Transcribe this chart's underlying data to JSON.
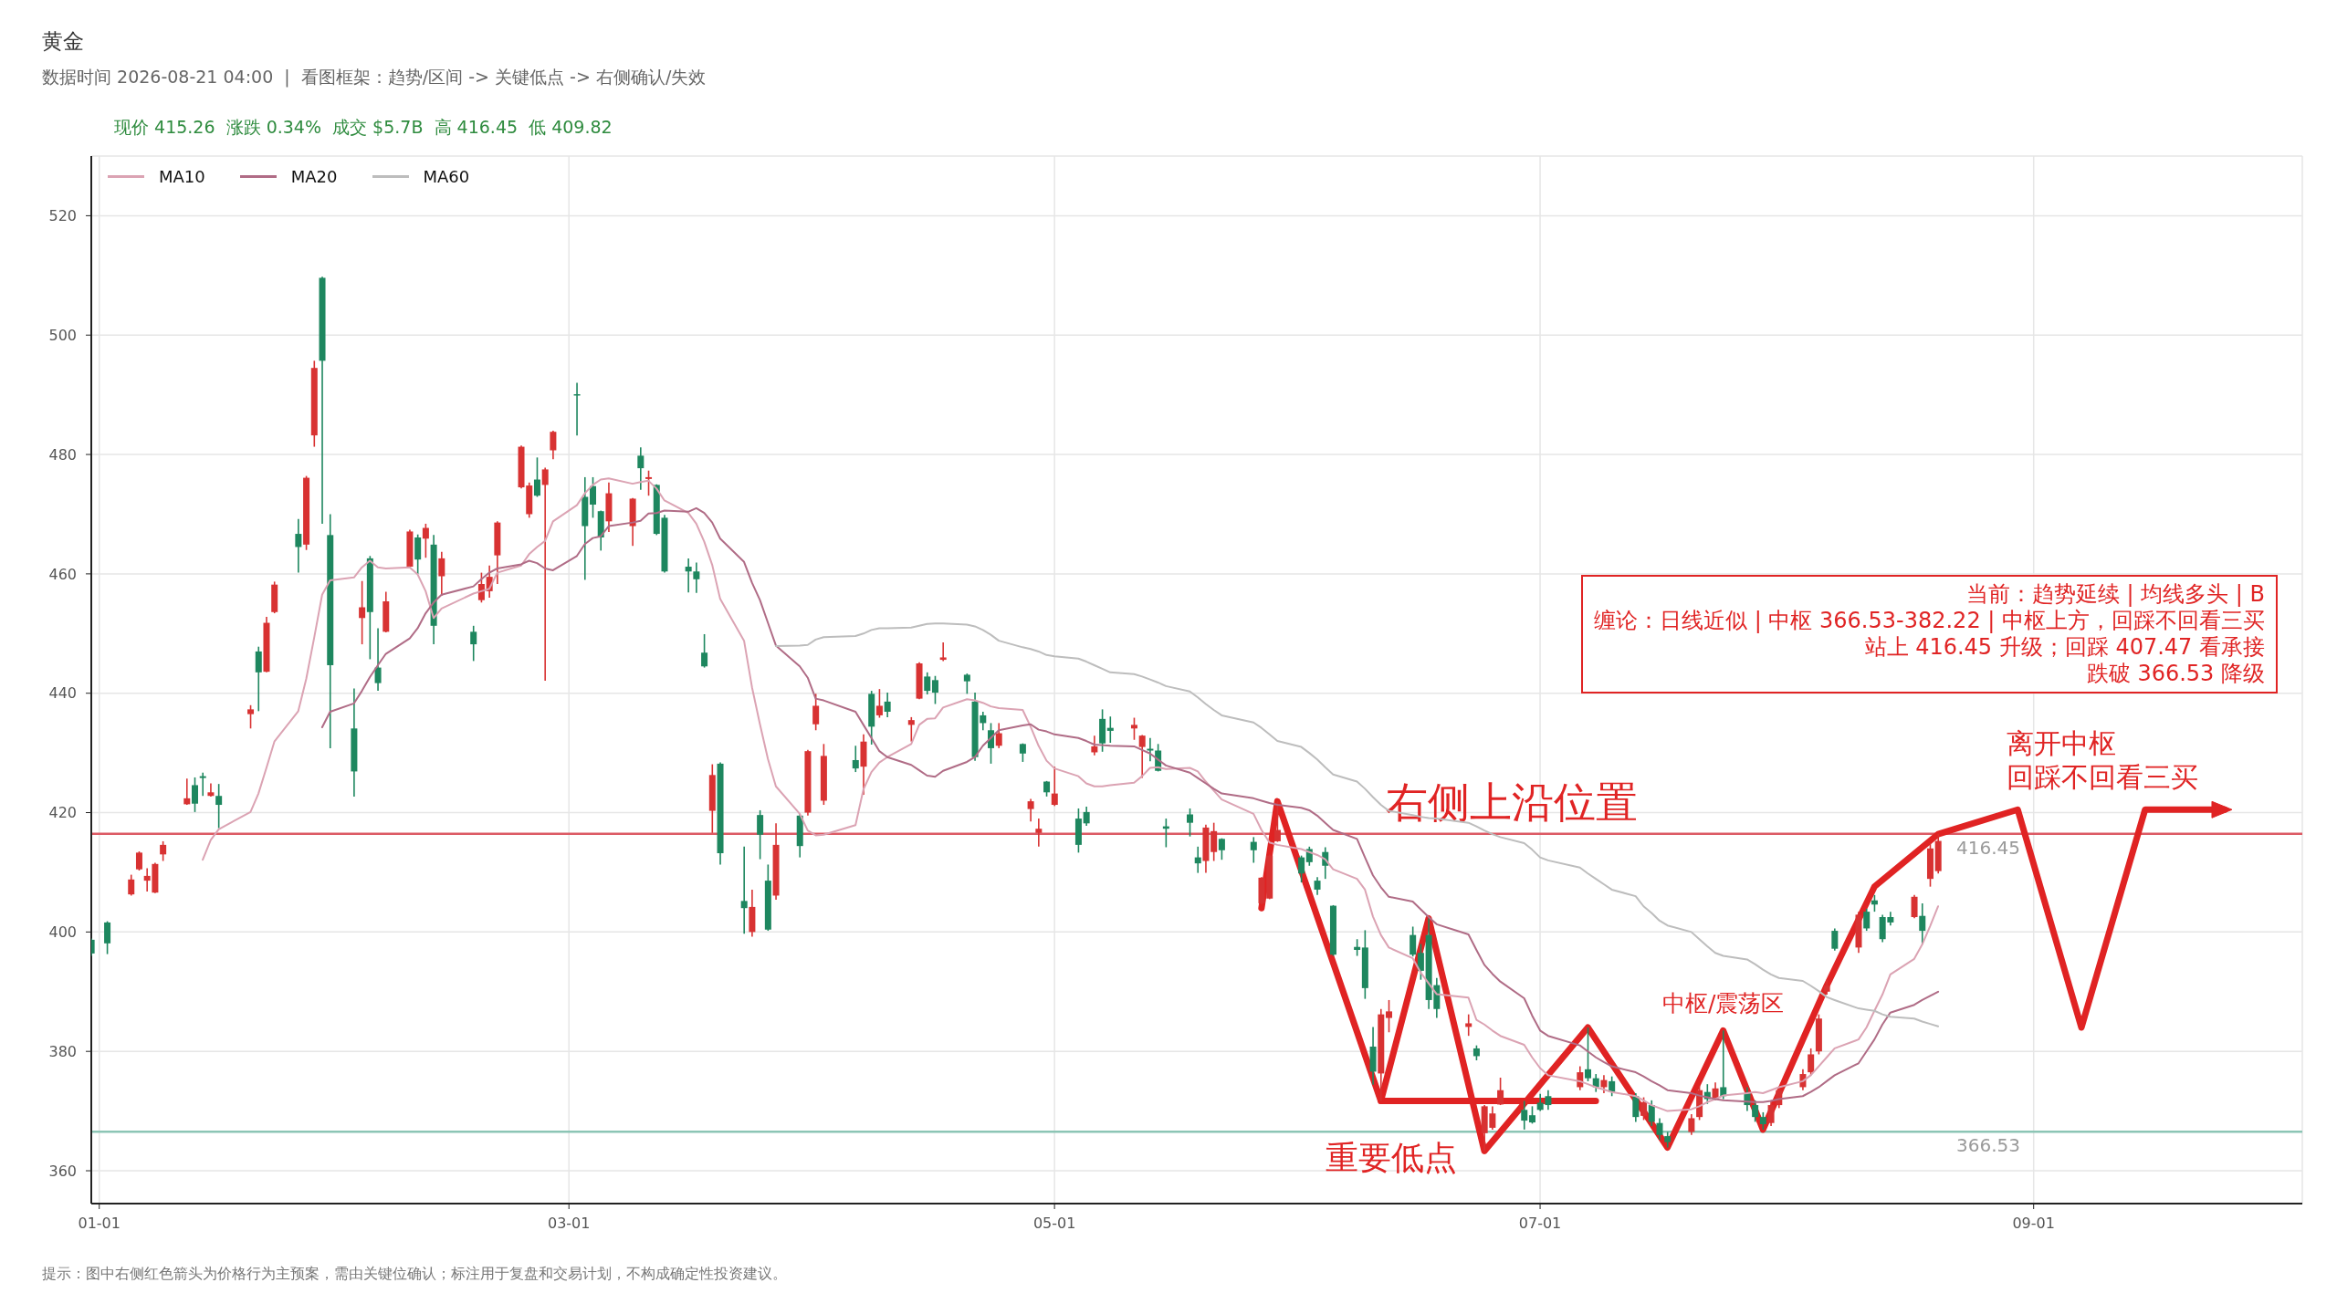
{
  "chart_data": {
    "type": "candlestick",
    "title": "黄金",
    "subtitle": "数据时间 2026-08-21 04:00  |  看图框架：趋势/区间 -> 关键低点 -> 右侧确认/失效",
    "x": [
      "2025-12-31",
      "2026-01-02",
      "2026-01-05",
      "2026-01-06",
      "2026-01-07",
      "2026-01-08",
      "2026-01-09",
      "2026-01-12",
      "2026-01-13",
      "2026-01-14",
      "2026-01-15",
      "2026-01-16",
      "2026-01-20",
      "2026-01-21",
      "2026-01-22",
      "2026-01-23",
      "2026-01-26",
      "2026-01-27",
      "2026-01-28",
      "2026-01-29",
      "2026-01-30",
      "2026-02-02",
      "2026-02-03",
      "2026-02-04",
      "2026-02-05",
      "2026-02-06",
      "2026-02-09",
      "2026-02-10",
      "2026-02-11",
      "2026-02-12",
      "2026-02-13",
      "2026-02-17",
      "2026-02-18",
      "2026-02-19",
      "2026-02-20",
      "2026-02-23",
      "2026-02-24",
      "2026-02-25",
      "2026-02-26",
      "2026-02-27",
      "2026-03-02",
      "2026-03-03",
      "2026-03-04",
      "2026-03-05",
      "2026-03-06",
      "2026-03-09",
      "2026-03-10",
      "2026-03-11",
      "2026-03-12",
      "2026-03-13",
      "2026-03-16",
      "2026-03-17",
      "2026-03-18",
      "2026-03-19",
      "2026-03-20",
      "2026-03-23",
      "2026-03-24",
      "2026-03-25",
      "2026-03-26",
      "2026-03-27",
      "2026-03-30",
      "2026-03-31",
      "2026-04-01",
      "2026-04-02",
      "2026-04-06",
      "2026-04-07",
      "2026-04-08",
      "2026-04-09",
      "2026-04-10",
      "2026-04-13",
      "2026-04-14",
      "2026-04-15",
      "2026-04-16",
      "2026-04-17",
      "2026-04-20",
      "2026-04-21",
      "2026-04-22",
      "2026-04-23",
      "2026-04-24",
      "2026-04-27",
      "2026-04-28",
      "2026-04-29",
      "2026-04-30",
      "2026-05-01",
      "2026-05-04",
      "2026-05-05",
      "2026-05-06",
      "2026-05-07",
      "2026-05-08",
      "2026-05-11",
      "2026-05-12",
      "2026-05-13",
      "2026-05-14",
      "2026-05-15",
      "2026-05-18",
      "2026-05-19",
      "2026-05-20",
      "2026-05-21",
      "2026-05-22",
      "2026-05-26",
      "2026-05-27",
      "2026-05-28",
      "2026-05-29",
      "2026-06-01",
      "2026-06-02",
      "2026-06-03",
      "2026-06-04",
      "2026-06-05",
      "2026-06-08",
      "2026-06-09",
      "2026-06-10",
      "2026-06-11",
      "2026-06-12",
      "2026-06-15",
      "2026-06-16",
      "2026-06-17",
      "2026-06-18",
      "2026-06-22",
      "2026-06-23",
      "2026-06-24",
      "2026-06-25",
      "2026-06-26",
      "2026-06-29",
      "2026-06-30",
      "2026-07-01",
      "2026-07-02",
      "2026-07-06",
      "2026-07-07",
      "2026-07-08",
      "2026-07-09",
      "2026-07-10",
      "2026-07-13",
      "2026-07-14",
      "2026-07-15",
      "2026-07-16",
      "2026-07-17",
      "2026-07-20",
      "2026-07-21",
      "2026-07-22",
      "2026-07-23",
      "2026-07-24",
      "2026-07-27",
      "2026-07-28",
      "2026-07-29",
      "2026-07-30",
      "2026-07-31",
      "2026-08-03",
      "2026-08-04",
      "2026-08-05",
      "2026-08-06",
      "2026-08-07",
      "2026-08-10",
      "2026-08-11",
      "2026-08-12",
      "2026-08-13",
      "2026-08-14",
      "2026-08-17",
      "2026-08-18",
      "2026-08-19",
      "2026-08-20"
    ],
    "ohlc": [
      [
        398.7,
        398.9,
        396.0,
        396.4
      ],
      [
        401.6,
        401.8,
        396.3,
        398.1
      ],
      [
        406.3,
        409.6,
        406.1,
        408.8
      ],
      [
        410.5,
        413.5,
        410.3,
        413.3
      ],
      [
        408.6,
        410.7,
        406.8,
        409.4
      ],
      [
        406.6,
        411.6,
        406.5,
        411.4
      ],
      [
        413.0,
        415.2,
        411.9,
        414.6
      ],
      [
        421.4,
        425.7,
        421.3,
        422.4
      ],
      [
        424.6,
        425.9,
        420.1,
        421.5
      ],
      [
        426.1,
        426.7,
        422.8,
        425.8
      ],
      [
        422.8,
        424.9,
        422.7,
        423.4
      ],
      [
        422.8,
        424.8,
        417.4,
        421.3
      ],
      [
        436.5,
        438.0,
        434.1,
        437.3
      ],
      [
        447.0,
        447.8,
        437.0,
        443.5
      ],
      [
        443.6,
        452.8,
        443.5,
        451.8
      ],
      [
        453.6,
        458.7,
        453.4,
        458.2
      ],
      [
        466.7,
        469.2,
        460.2,
        464.5
      ],
      [
        464.9,
        476.4,
        464.0,
        476.1
      ],
      [
        483.2,
        495.7,
        481.3,
        494.5
      ],
      [
        509.6,
        509.8,
        468.4,
        495.7
      ],
      [
        466.5,
        470.0,
        430.8,
        444.7
      ],
      [
        434.1,
        440.8,
        422.7,
        426.9
      ],
      [
        452.6,
        458.8,
        448.2,
        454.4
      ],
      [
        462.6,
        463.0,
        445.7,
        453.6
      ],
      [
        444.3,
        450.9,
        440.4,
        441.7
      ],
      [
        450.3,
        457.0,
        450.2,
        455.4
      ],
      [
        461.2,
        467.4,
        461.1,
        467.1
      ],
      [
        466.1,
        466.6,
        460.0,
        462.4
      ],
      [
        465.9,
        468.4,
        462.7,
        467.7
      ],
      [
        464.9,
        466.5,
        448.2,
        451.3
      ],
      [
        459.6,
        463.7,
        456.3,
        462.6
      ],
      [
        450.3,
        451.3,
        445.4,
        448.2
      ],
      [
        455.6,
        460.2,
        455.2,
        458.3
      ],
      [
        457.1,
        461.4,
        456.0,
        459.5
      ],
      [
        463.1,
        468.8,
        458.3,
        468.6
      ],
      [
        474.5,
        481.5,
        474.3,
        481.3
      ],
      [
        470.0,
        475.3,
        469.4,
        474.8
      ],
      [
        475.8,
        479.5,
        472.9,
        473.1
      ],
      [
        474.9,
        477.8,
        442.1,
        477.5
      ],
      [
        480.7,
        484.0,
        479.2,
        483.8
      ],
      [
        490.1,
        492.0,
        483.2,
        489.9
      ],
      [
        472.9,
        476.2,
        459.0,
        468.0
      ],
      [
        474.7,
        476.2,
        469.4,
        471.6
      ],
      [
        470.5,
        470.6,
        463.9,
        466.1
      ],
      [
        468.8,
        475.3,
        467.0,
        473.5
      ],
      [
        468.0,
        472.7,
        464.7,
        472.6
      ],
      [
        479.8,
        481.2,
        474.1,
        477.7
      ],
      [
        475.9,
        477.3,
        473.1,
        476.2
      ],
      [
        474.9,
        475.0,
        466.5,
        466.7
      ],
      [
        469.4,
        469.9,
        460.2,
        460.4
      ],
      [
        461.2,
        462.6,
        456.9,
        460.4
      ],
      [
        460.4,
        461.9,
        456.8,
        459.1
      ],
      [
        446.8,
        449.9,
        444.3,
        444.5
      ],
      [
        420.3,
        428.1,
        416.6,
        426.3
      ],
      [
        428.2,
        428.4,
        411.3,
        413.2
      ],
      [
        405.2,
        414.3,
        399.7,
        404.0
      ],
      [
        400.0,
        407.1,
        399.2,
        404.2
      ],
      [
        419.6,
        420.4,
        412.2,
        416.3
      ],
      [
        408.6,
        411.3,
        400.2,
        400.4
      ],
      [
        406.1,
        418.2,
        405.4,
        414.6
      ],
      [
        419.5,
        419.8,
        412.5,
        414.4
      ],
      [
        420.0,
        430.5,
        419.5,
        430.3
      ],
      [
        434.8,
        439.9,
        433.8,
        437.9
      ],
      [
        422.0,
        431.5,
        421.3,
        429.5
      ],
      [
        428.8,
        431.2,
        426.8,
        427.4
      ],
      [
        427.7,
        433.1,
        423.0,
        431.9
      ],
      [
        439.9,
        440.4,
        431.4,
        434.4
      ],
      [
        436.3,
        440.7,
        435.9,
        437.9
      ],
      [
        438.6,
        440.1,
        436.0,
        436.9
      ],
      [
        434.7,
        436.0,
        431.9,
        435.5
      ],
      [
        439.1,
        445.2,
        439.0,
        445.0
      ],
      [
        442.8,
        443.5,
        439.8,
        440.4
      ],
      [
        442.2,
        442.9,
        438.2,
        440.1
      ],
      [
        445.6,
        448.5,
        445.4,
        446.0
      ],
      [
        443.1,
        443.3,
        439.9,
        442.0
      ],
      [
        438.6,
        440.1,
        428.7,
        429.3
      ],
      [
        436.3,
        436.9,
        433.8,
        435.0
      ],
      [
        433.8,
        435.0,
        428.2,
        430.8
      ],
      [
        431.2,
        435.0,
        430.8,
        433.3
      ],
      [
        431.5,
        431.6,
        428.5,
        429.9
      ],
      [
        420.6,
        422.3,
        418.5,
        421.9
      ],
      [
        416.6,
        419.0,
        414.3,
        417.3
      ],
      [
        425.2,
        425.3,
        422.7,
        423.4
      ],
      [
        421.3,
        427.7,
        421.1,
        423.2
      ],
      [
        419.0,
        420.7,
        413.3,
        414.6
      ],
      [
        420.1,
        421.0,
        417.8,
        418.2
      ],
      [
        430.1,
        432.9,
        429.6,
        431.1
      ],
      [
        435.7,
        437.3,
        430.2,
        431.6
      ],
      [
        434.2,
        436.1,
        431.7,
        433.7
      ],
      [
        434.1,
        435.9,
        432.2,
        434.7
      ],
      [
        431.0,
        433.0,
        425.8,
        432.9
      ],
      [
        430.7,
        432.5,
        428.6,
        430.4
      ],
      [
        430.4,
        431.5,
        426.9,
        427.0
      ],
      [
        417.7,
        419.0,
        414.2,
        417.3
      ],
      [
        419.7,
        420.7,
        416.0,
        418.3
      ],
      [
        412.5,
        414.3,
        409.9,
        411.5
      ],
      [
        411.9,
        418.0,
        409.9,
        417.5
      ],
      [
        413.4,
        418.3,
        411.9,
        416.9
      ],
      [
        415.6,
        415.7,
        412.1,
        413.7
      ],
      [
        415.1,
        415.9,
        411.6,
        413.7
      ],
      [
        404.8,
        409.2,
        404.6,
        409.1
      ],
      [
        405.6,
        413.0,
        405.5,
        412.8
      ],
      [
        415.2,
        421.9,
        415.1,
        417.1
      ],
      [
        412.5,
        412.8,
        408.3,
        409.8
      ],
      [
        413.9,
        414.3,
        411.1,
        411.7
      ],
      [
        408.6,
        409.2,
        406.2,
        407.1
      ],
      [
        413.4,
        414.2,
        408.9,
        411.1
      ],
      [
        404.4,
        404.5,
        396.0,
        396.2
      ],
      [
        397.5,
        398.8,
        396.0,
        397.0
      ],
      [
        397.4,
        400.3,
        388.8,
        390.6
      ],
      [
        380.8,
        384.1,
        374.4,
        376.6
      ],
      [
        376.3,
        387.1,
        371.7,
        386.2
      ],
      [
        385.6,
        388.6,
        383.2,
        386.7
      ],
      [
        399.5,
        400.9,
        395.9,
        396.2
      ],
      [
        396.5,
        398.0,
        392.0,
        393.5
      ],
      [
        399.5,
        402.3,
        387.1,
        388.6
      ],
      [
        391.1,
        392.3,
        385.6,
        387.1
      ],
      [
        384.1,
        386.2,
        382.6,
        384.7
      ],
      [
        380.5,
        381.0,
        378.5,
        379.2
      ],
      [
        366.3,
        371.0,
        363.3,
        370.8
      ],
      [
        367.2,
        370.8,
        366.9,
        369.6
      ],
      [
        371.1,
        375.6,
        371.0,
        373.5
      ],
      [
        370.2,
        371.7,
        366.9,
        368.4
      ],
      [
        369.3,
        370.8,
        367.9,
        368.1
      ],
      [
        371.4,
        372.9,
        370.0,
        370.2
      ],
      [
        372.5,
        373.5,
        370.2,
        371.0
      ],
      [
        374.0,
        377.5,
        373.5,
        376.5
      ],
      [
        377.0,
        384.0,
        375.0,
        375.5
      ],
      [
        375.5,
        376.2,
        373.2,
        374.0
      ],
      [
        374.0,
        376.0,
        373.0,
        375.2
      ],
      [
        375.0,
        375.8,
        372.5,
        373.2
      ],
      [
        372.5,
        373.0,
        368.2,
        369.0
      ],
      [
        369.2,
        372.3,
        368.5,
        371.5
      ],
      [
        371.0,
        371.8,
        367.5,
        368.2
      ],
      [
        368.0,
        368.8,
        365.2,
        366.0
      ],
      [
        365.8,
        366.5,
        363.9,
        364.8
      ],
      [
        366.5,
        369.5,
        366.0,
        368.8
      ],
      [
        369.0,
        374.2,
        368.5,
        373.5
      ],
      [
        373.2,
        374.5,
        371.2,
        372.0
      ],
      [
        372.2,
        374.8,
        371.8,
        373.8
      ],
      [
        374.0,
        383.5,
        372.0,
        372.5
      ],
      [
        373.0,
        374.0,
        370.0,
        371.0
      ],
      [
        371.0,
        371.8,
        368.2,
        369.0
      ],
      [
        369.0,
        369.8,
        366.9,
        367.8
      ],
      [
        368.0,
        371.8,
        367.5,
        371.0
      ],
      [
        371.0,
        374.2,
        370.5,
        373.5
      ],
      [
        374.0,
        377.0,
        373.5,
        376.2
      ],
      [
        376.5,
        380.5,
        376.0,
        379.5
      ],
      [
        380.0,
        386.2,
        379.5,
        385.5
      ],
      [
        390.0,
        392.0,
        389.5,
        391.0
      ],
      [
        400.2,
        400.6,
        396.9,
        397.2
      ],
      [
        397.4,
        403.4,
        396.5,
        402.9
      ],
      [
        403.4,
        403.9,
        400.2,
        400.6
      ],
      [
        405.3,
        406.2,
        403.4,
        404.6
      ],
      [
        402.5,
        402.9,
        398.3,
        398.8
      ],
      [
        402.5,
        403.4,
        401.1,
        401.6
      ],
      [
        402.5,
        406.2,
        402.3,
        405.9
      ],
      [
        402.7,
        404.8,
        397.9,
        400.2
      ],
      [
        408.9,
        414.9,
        407.6,
        414.0
      ],
      [
        410.2,
        416.45,
        409.82,
        415.26
      ]
    ],
    "colors": [
      "#1e875f",
      "#1e875f",
      "#d83232",
      "#d83232",
      "#d83232",
      "#d83232",
      "#d83232",
      "#d83232",
      "#1e875f",
      "#1e875f",
      "#d83232",
      "#1e875f",
      "#d83232",
      "#1e875f",
      "#d83232",
      "#d83232",
      "#1e875f",
      "#d83232",
      "#d83232",
      "#1e875f",
      "#1e875f",
      "#1e875f",
      "#d83232",
      "#1e875f",
      "#1e875f",
      "#d83232",
      "#d83232",
      "#1e875f",
      "#d83232",
      "#1e875f",
      "#d83232",
      "#1e875f",
      "#d83232",
      "#d83232",
      "#d83232",
      "#d83232",
      "#d83232",
      "#1e875f",
      "#d83232",
      "#d83232",
      "#1e875f",
      "#1e875f",
      "#1e875f",
      "#1e875f",
      "#d83232",
      "#d83232",
      "#1e875f",
      "#d83232",
      "#1e875f",
      "#1e875f",
      "#1e875f",
      "#1e875f",
      "#1e875f",
      "#d83232",
      "#1e875f",
      "#1e875f",
      "#d83232",
      "#1e875f",
      "#1e875f",
      "#d83232",
      "#1e875f",
      "#d83232",
      "#d83232",
      "#d83232",
      "#1e875f",
      "#d83232",
      "#1e875f",
      "#d83232",
      "#1e875f",
      "#d83232",
      "#d83232",
      "#1e875f",
      "#1e875f",
      "#d83232",
      "#1e875f",
      "#1e875f",
      "#1e875f",
      "#1e875f",
      "#d83232",
      "#1e875f",
      "#d83232",
      "#d83232",
      "#1e875f",
      "#d83232",
      "#1e875f",
      "#1e875f",
      "#d83232",
      "#1e875f",
      "#1e875f",
      "#d83232",
      "#d83232",
      "#1e875f",
      "#1e875f",
      "#1e875f",
      "#1e875f",
      "#1e875f",
      "#d83232",
      "#d83232",
      "#1e875f",
      "#1e875f",
      "#d83232",
      "#d83232",
      "#d83232",
      "#1e875f",
      "#1e875f",
      "#1e875f",
      "#1e875f",
      "#1e875f",
      "#1e875f",
      "#1e875f",
      "#1e875f",
      "#d83232",
      "#d83232",
      "#1e875f",
      "#1e875f",
      "#1e875f",
      "#1e875f",
      "#d83232",
      "#1e875f",
      "#d83232",
      "#d83232",
      "#d83232",
      "#1e875f",
      "#1e875f",
      "#1e875f",
      "#1e875f",
      "#d83232",
      "#1e875f",
      "#1e875f",
      "#d83232",
      "#1e875f",
      "#1e875f",
      "#d83232",
      "#1e875f",
      "#1e875f",
      "#1e875f",
      "#d83232",
      "#d83232",
      "#1e875f",
      "#d83232",
      "#1e875f",
      "#1e875f",
      "#1e875f",
      "#1e875f",
      "#d83232",
      "#d83232",
      "#d83232",
      "#d83232",
      "#d83232",
      "#d83232",
      "#1e875f",
      "#d83232",
      "#1e875f",
      "#1e875f",
      "#1e875f",
      "#1e875f",
      "#d83232",
      "#1e875f",
      "#d83232",
      "#d83232"
    ],
    "series": [
      {
        "name": "MA10",
        "type": "line",
        "color": "#dba3b3",
        "values": [
          null,
          null,
          null,
          null,
          null,
          null,
          null,
          null,
          null,
          412.1,
          415.4,
          417.2,
          420.1,
          423.2,
          427.5,
          431.9,
          437.0,
          442.4,
          449.3,
          456.5,
          458.9,
          459.4,
          461.1,
          462.2,
          461.1,
          460.9,
          461.1,
          459.9,
          457.1,
          452.6,
          454.2,
          456.7,
          457.1,
          457.5,
          460.2,
          461.4,
          463.3,
          464.5,
          465.5,
          468.8,
          471.5,
          473.5,
          474.9,
          475.8,
          476.0,
          475.1,
          475.4,
          475.6,
          474.3,
          472.3,
          470.2,
          468.4,
          465.4,
          461.5,
          455.8,
          448.8,
          441.0,
          434.8,
          429.0,
          424.4,
          419.8,
          417.0,
          416.2,
          416.3,
          417.9,
          423.9,
          426.8,
          428.4,
          429.3,
          431.5,
          434.7,
          435.7,
          435.8,
          437.6,
          439.0,
          438.8,
          438.4,
          437.8,
          437.5,
          437.2,
          434.4,
          431.2,
          428.7,
          427.4,
          426.1,
          424.9,
          424.4,
          424.4,
          424.6,
          425.0,
          426.1,
          427.5,
          427.6,
          427.3,
          427.5,
          426.9,
          425.2,
          423.7,
          422.2,
          419.8,
          417.1,
          415.0,
          414.6,
          413.9,
          413.4,
          412.9,
          412.2,
          410.5,
          408.9,
          407.1,
          402.6,
          399.5,
          397.4,
          395.6,
          393.2,
          391.4,
          389.6,
          389.0,
          385.3,
          384.5,
          383.5,
          382.6,
          381.1,
          379.0,
          377.2,
          376.0,
          375.0,
          374.5,
          374.0,
          373.6,
          373.2,
          372.5,
          371.8,
          371.0,
          370.5,
          370.0,
          370.3,
          370.8,
          371.5,
          372.0,
          372.6,
          373.0,
          373.2,
          373.0,
          373.5,
          374.0,
          375.0,
          376.0,
          377.5,
          379.0,
          380.5,
          382.0,
          384.0,
          386.8,
          389.5,
          392.9,
          395.5,
          397.9,
          401.0,
          404.3
        ]
      },
      {
        "name": "MA20",
        "type": "line",
        "color": "#b06c86",
        "values": [
          null,
          null,
          null,
          null,
          null,
          null,
          null,
          null,
          null,
          null,
          null,
          null,
          null,
          null,
          null,
          null,
          null,
          null,
          null,
          434.3,
          436.9,
          438.3,
          440.4,
          442.7,
          444.7,
          446.6,
          449.2,
          450.9,
          453.4,
          455.2,
          456.5,
          457.9,
          459.1,
          460.2,
          460.9,
          461.6,
          462.2,
          461.8,
          460.9,
          460.6,
          463.0,
          465.0,
          466.0,
          466.3,
          468.0,
          468.6,
          468.9,
          470.1,
          470.2,
          470.6,
          470.4,
          471.0,
          470.2,
          468.6,
          465.9,
          462.0,
          458.5,
          455.6,
          451.8,
          448.0,
          444.5,
          442.6,
          439.1,
          438.8,
          436.9,
          434.7,
          432.5,
          430.3,
          429.3,
          428.0,
          427.1,
          426.2,
          426.0,
          427.0,
          428.5,
          429.3,
          431.2,
          432.5,
          433.8,
          434.6,
          434.8,
          433.9,
          433.6,
          433.1,
          432.5,
          432.0,
          431.4,
          431.3,
          431.2,
          431.1,
          430.5,
          429.9,
          428.9,
          427.9,
          426.7,
          425.8,
          424.9,
          424.0,
          423.2,
          422.4,
          422.0,
          421.6,
          421.3,
          420.8,
          420.4,
          419.5,
          418.3,
          417.1,
          415.6,
          412.5,
          409.5,
          407.5,
          405.9,
          405.1,
          403.8,
          402.5,
          401.3,
          399.6,
          397.0,
          394.5,
          393.0,
          391.7,
          388.9,
          386.0,
          383.5,
          382.6,
          381.0,
          380.0,
          379.0,
          378.2,
          377.5,
          376.5,
          375.8,
          375.0,
          374.3,
          373.5,
          373.0,
          372.6,
          372.3,
          372.0,
          371.8,
          371.6,
          371.5,
          371.5,
          371.7,
          372.0,
          372.5,
          373.2,
          374.0,
          375.0,
          376.0,
          378.0,
          380.0,
          382.0,
          384.5,
          386.5,
          387.8,
          388.6,
          389.3,
          390.0
        ]
      },
      {
        "name": "MA60",
        "type": "line",
        "color": "#bdbdbd",
        "values": [
          null,
          null,
          null,
          null,
          null,
          null,
          null,
          null,
          null,
          null,
          null,
          null,
          null,
          null,
          null,
          null,
          null,
          null,
          null,
          null,
          null,
          null,
          null,
          null,
          null,
          null,
          null,
          null,
          null,
          null,
          null,
          null,
          null,
          null,
          null,
          null,
          null,
          null,
          null,
          null,
          null,
          null,
          null,
          null,
          null,
          null,
          null,
          null,
          null,
          null,
          null,
          null,
          null,
          null,
          null,
          null,
          null,
          null,
          null,
          447.9,
          448.0,
          448.1,
          449.0,
          449.4,
          449.6,
          450.0,
          450.6,
          450.9,
          450.9,
          451.0,
          451.3,
          451.6,
          451.7,
          451.7,
          451.5,
          451.2,
          450.6,
          449.8,
          448.8,
          447.7,
          447.4,
          447.0,
          446.4,
          446.2,
          445.8,
          445.3,
          444.7,
          444.1,
          443.5,
          443.2,
          442.8,
          442.3,
          441.8,
          441.2,
          440.3,
          439.3,
          438.2,
          437.2,
          436.3,
          435.1,
          434.2,
          433.1,
          432.0,
          431.0,
          430.0,
          428.9,
          427.6,
          426.4,
          425.2,
          424.0,
          422.6,
          421.3,
          420.3,
          419.6,
          419.3,
          419.1,
          419.0,
          418.3,
          417.7,
          417.0,
          416.4,
          415.9,
          414.9,
          413.8,
          412.5,
          412.0,
          410.8,
          409.8,
          408.9,
          408.0,
          407.1,
          406.0,
          404.3,
          403.2,
          401.9,
          401.1,
          400.0,
          398.8,
          397.6,
          396.5,
          396.0,
          395.4,
          394.6,
          393.7,
          392.9,
          392.3,
          391.8,
          391.0,
          390.1,
          389.1,
          388.6,
          387.2,
          387.0,
          386.8,
          386.2,
          385.8,
          385.5,
          385.0,
          384.6,
          384.2
        ]
      },
      {
        "type": "line",
        "color": "#e02323",
        "x": [
          "2026-06-11",
          "2026-07-08"
        ],
        "values": [
          371.7,
          371.7
        ]
      },
      {
        "type": "line",
        "color": "#e02323",
        "x": [
          "2026-05-27",
          "2026-05-29",
          "2026-06-11",
          "2026-06-17",
          "2026-06-24",
          "2026-07-07",
          "2026-07-17",
          "2026-07-24",
          "2026-07-29",
          "2026-08-06",
          "2026-08-12",
          "2026-08-20",
          "2026-08-30",
          "2026-09-07",
          "2026-09-15",
          "2026-09-25"
        ],
        "values": [
          404.0,
          421.9,
          371.7,
          402.3,
          363.3,
          384.0,
          363.9,
          383.5,
          366.9,
          391.0,
          407.6,
          416.4,
          420.5,
          384.0,
          420.5,
          420.5
        ]
      }
    ],
    "xlim": [
      "2025-12-31",
      "2026-10-04T18:00"
    ],
    "xticks": [
      {
        "value": "2026-01-01",
        "label": "01-01"
      },
      {
        "value": "2026-03-01",
        "label": "03-01"
      },
      {
        "value": "2026-05-01",
        "label": "05-01"
      },
      {
        "value": "2026-07-01",
        "label": "07-01"
      },
      {
        "value": "2026-09-01",
        "label": "09-01"
      }
    ],
    "ylim": [
      354.5,
      530
    ],
    "yticks": [
      360,
      380,
      400,
      420,
      440,
      460,
      480,
      500,
      520
    ],
    "ref_lines": [
      {
        "axis": "y",
        "value": 416.45,
        "label": "416.45",
        "color": "#dc5a64"
      },
      {
        "axis": "y",
        "value": 366.53,
        "label": "366.53",
        "color": "#8cc5b5"
      }
    ],
    "annotations": [
      "现价 415.26  涨跌 0.34%  成交 $5.7B  高 416.45  低 409.82",
      {
        "text": "右侧上沿位置",
        "x": "2026-06-10",
        "y": 421.9
      },
      {
        "text": "重要低点",
        "x": "2026-06-24",
        "y": 363.3
      },
      {
        "text": "离开中枢",
        "x": "2026-08-30",
        "y": 420.5
      },
      {
        "text": "回踩不回看三买",
        "x": "2026-08-30",
        "y": 420.5
      },
      {
        "text": "中枢/震荡区",
        "x": "2026-07-24",
        "y": 382.22
      },
      "当前：趋势延续 | 均线多头 | B",
      "缠论：日线近似 | 中枢 366.53-382.22 | 中枢上方，回踩不回看三买",
      "站上 416.45 升级；回踩 407.47 看承接",
      "跌破 366.53 降级",
      "提示：图中右侧红色箭头为价格行为主预案，需由关键位确认；标注用于复盘和交易计划，不构成确定性投资建议。"
    ],
    "grid": true,
    "legend": "top left"
  }
}
